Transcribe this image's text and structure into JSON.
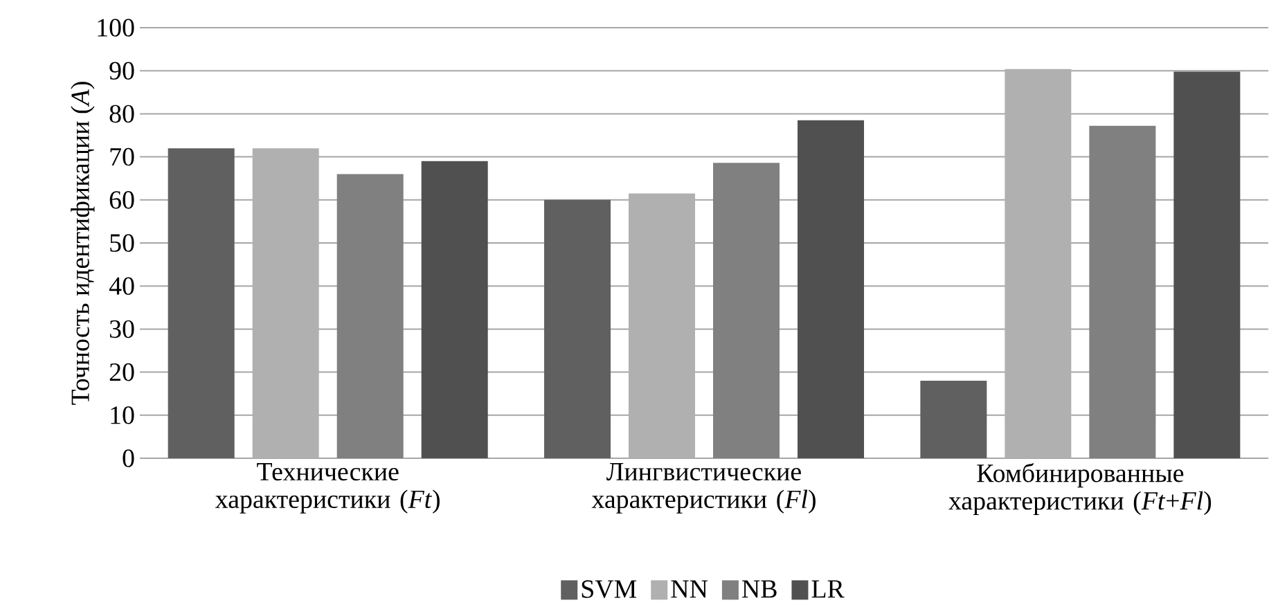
{
  "chart_data": {
    "type": "bar",
    "categories": [
      "Технические характеристики (*Ft*)",
      "Лингвистические характеристики (*Fl*)",
      "Комбинированные характеристики (*Ft*+*Fl*)"
    ],
    "series": [
      {
        "name": "SVM",
        "color": "#606060",
        "values": [
          72,
          60,
          18
        ]
      },
      {
        "name": "NN",
        "color": "#b0b0b0",
        "values": [
          72,
          61.5,
          90.4
        ]
      },
      {
        "name": "NB",
        "color": "#808080",
        "values": [
          66,
          68.6,
          77.2
        ]
      },
      {
        "name": "LR",
        "color": "#505050",
        "values": [
          69,
          78.5,
          89.8
        ]
      }
    ],
    "ylabel": "Точность идентификации (*A*)",
    "ylim": [
      0,
      100
    ],
    "yticks": [
      0,
      10,
      20,
      30,
      40,
      50,
      60,
      70,
      80,
      90,
      100
    ],
    "grid": "y",
    "legend": "bottom"
  }
}
